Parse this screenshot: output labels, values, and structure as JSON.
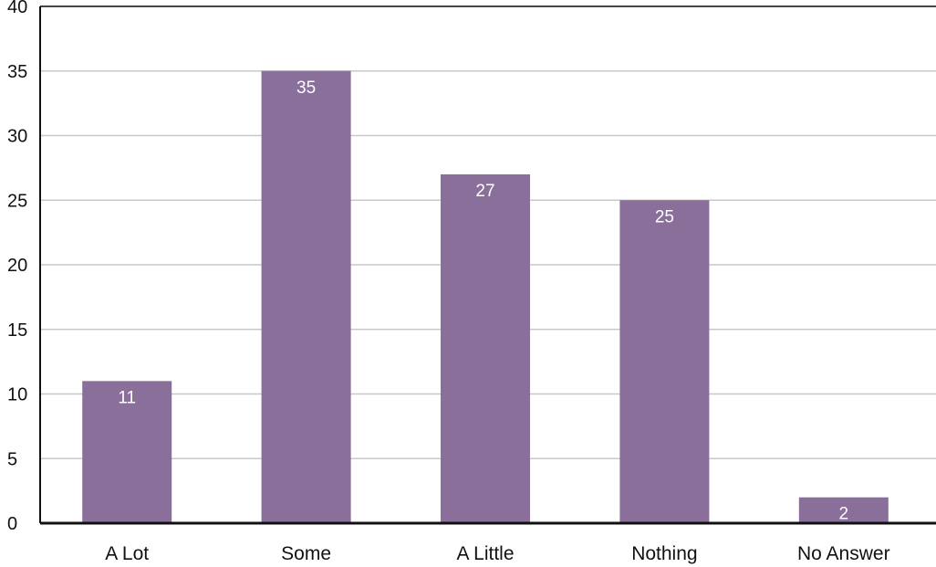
{
  "chart_data": {
    "type": "bar",
    "categories": [
      "A Lot",
      "Some",
      "A Little",
      "Nothing",
      "No Answer"
    ],
    "values": [
      11,
      35,
      27,
      25,
      2
    ],
    "data_labels": [
      "11",
      "35",
      "27",
      "25",
      "2"
    ],
    "ylim": [
      0,
      40
    ],
    "yticks": [
      0,
      5,
      10,
      15,
      20,
      25,
      30,
      35,
      40
    ],
    "ytick_labels": [
      "0",
      "5",
      "10",
      "15",
      "20",
      "25",
      "30",
      "35",
      "40"
    ],
    "grid": true,
    "legend": "none",
    "title": "",
    "xlabel": "",
    "ylabel": ""
  },
  "colors": {
    "bar": "#8b6f9b",
    "grid": "#c8c8c8",
    "axis": "#111111",
    "data_label": "#ffffff",
    "text": "#111111"
  }
}
